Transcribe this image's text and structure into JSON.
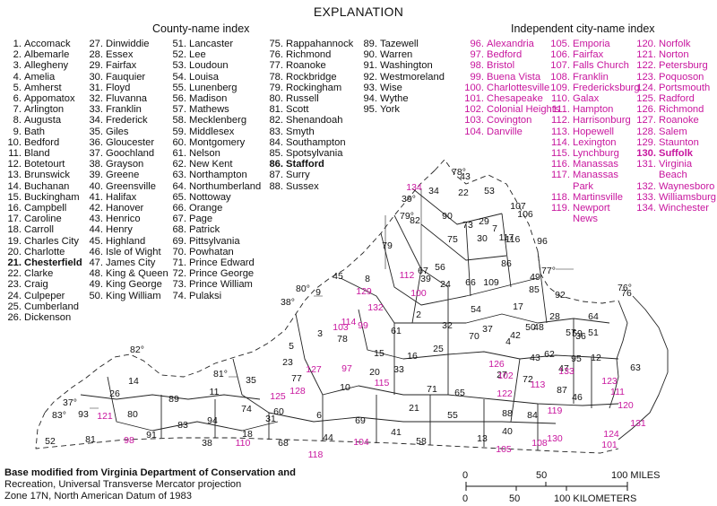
{
  "title": "EXPLANATION",
  "county_header": "County-name index",
  "city_header": "Independent city-name index",
  "counties": [
    {
      "num": "1.",
      "name": "Accomack"
    },
    {
      "num": "2.",
      "name": "Albemarle"
    },
    {
      "num": "3.",
      "name": "Allegheny"
    },
    {
      "num": "4.",
      "name": "Amelia"
    },
    {
      "num": "5.",
      "name": "Amherst"
    },
    {
      "num": "6.",
      "name": "Appomatox"
    },
    {
      "num": "7.",
      "name": "Arlington"
    },
    {
      "num": "8.",
      "name": "Augusta"
    },
    {
      "num": "9.",
      "name": "Bath"
    },
    {
      "num": "10.",
      "name": "Bedford"
    },
    {
      "num": "11.",
      "name": "Bland"
    },
    {
      "num": "12.",
      "name": "Botetourt"
    },
    {
      "num": "13.",
      "name": "Brunswick"
    },
    {
      "num": "14.",
      "name": "Buchanan"
    },
    {
      "num": "15.",
      "name": "Buckingham"
    },
    {
      "num": "16.",
      "name": "Campbell"
    },
    {
      "num": "17.",
      "name": "Caroline"
    },
    {
      "num": "18.",
      "name": "Carroll"
    },
    {
      "num": "19.",
      "name": "Charles City"
    },
    {
      "num": "20.",
      "name": "Charlotte"
    },
    {
      "num": "21.",
      "name": "Chesterfield",
      "bold": true
    },
    {
      "num": "22.",
      "name": "Clarke"
    },
    {
      "num": "23.",
      "name": "Craig"
    },
    {
      "num": "24.",
      "name": "Culpeper"
    },
    {
      "num": "25.",
      "name": "Cumberland"
    },
    {
      "num": "26.",
      "name": "Dickenson"
    },
    {
      "num": "27.",
      "name": "Dinwiddie"
    },
    {
      "num": "28.",
      "name": "Essex"
    },
    {
      "num": "29.",
      "name": "Fairfax"
    },
    {
      "num": "30.",
      "name": "Fauquier"
    },
    {
      "num": "31.",
      "name": "Floyd"
    },
    {
      "num": "32.",
      "name": "Fluvanna"
    },
    {
      "num": "33.",
      "name": "Franklin"
    },
    {
      "num": "34.",
      "name": "Frederick"
    },
    {
      "num": "35.",
      "name": "Giles"
    },
    {
      "num": "36.",
      "name": "Gloucester"
    },
    {
      "num": "37.",
      "name": "Goochland"
    },
    {
      "num": "38.",
      "name": "Grayson"
    },
    {
      "num": "39.",
      "name": "Greene"
    },
    {
      "num": "40.",
      "name": "Greensville"
    },
    {
      "num": "41.",
      "name": "Halifax"
    },
    {
      "num": "42.",
      "name": "Hanover"
    },
    {
      "num": "43.",
      "name": "Henrico"
    },
    {
      "num": "44.",
      "name": "Henry"
    },
    {
      "num": "45.",
      "name": "Highland"
    },
    {
      "num": "46.",
      "name": "Isle of Wight"
    },
    {
      "num": "47.",
      "name": "James City"
    },
    {
      "num": "48.",
      "name": "King & Queen"
    },
    {
      "num": "49.",
      "name": "King George"
    },
    {
      "num": "50.",
      "name": "King William"
    },
    {
      "num": "51.",
      "name": "Lancaster"
    },
    {
      "num": "52.",
      "name": "Lee"
    },
    {
      "num": "53.",
      "name": "Loudoun"
    },
    {
      "num": "54.",
      "name": "Louisa"
    },
    {
      "num": "55.",
      "name": "Lunenberg"
    },
    {
      "num": "56.",
      "name": "Madison"
    },
    {
      "num": "57.",
      "name": "Mathews"
    },
    {
      "num": "58.",
      "name": "Mecklenberg"
    },
    {
      "num": "59.",
      "name": "Middlesex"
    },
    {
      "num": "60.",
      "name": "Montgomery"
    },
    {
      "num": "61.",
      "name": "Nelson"
    },
    {
      "num": "62.",
      "name": "New Kent"
    },
    {
      "num": "63.",
      "name": "Northampton"
    },
    {
      "num": "64.",
      "name": "Northumberland"
    },
    {
      "num": "65.",
      "name": "Nottoway"
    },
    {
      "num": "66.",
      "name": "Orange"
    },
    {
      "num": "67.",
      "name": "Page"
    },
    {
      "num": "68.",
      "name": "Patrick"
    },
    {
      "num": "69.",
      "name": "Pittsylvania"
    },
    {
      "num": "70.",
      "name": "Powhatan"
    },
    {
      "num": "71.",
      "name": "Prince Edward"
    },
    {
      "num": "72.",
      "name": "Prince George"
    },
    {
      "num": "73.",
      "name": "Prince William"
    },
    {
      "num": "74.",
      "name": "Pulaksi"
    },
    {
      "num": "75.",
      "name": "Rappahannock"
    },
    {
      "num": "76.",
      "name": "Richmond"
    },
    {
      "num": "77.",
      "name": "Roanoke"
    },
    {
      "num": "78.",
      "name": "Rockbridge"
    },
    {
      "num": "79.",
      "name": "Rockingham"
    },
    {
      "num": "80.",
      "name": "Russell"
    },
    {
      "num": "81.",
      "name": "Scott"
    },
    {
      "num": "82.",
      "name": "Shenandoah"
    },
    {
      "num": "83.",
      "name": "Smyth"
    },
    {
      "num": "84.",
      "name": "Southampton"
    },
    {
      "num": "85.",
      "name": "Spotsylvania"
    },
    {
      "num": "86.",
      "name": "Stafford",
      "bold": true
    },
    {
      "num": "87.",
      "name": "Surry"
    },
    {
      "num": "88.",
      "name": "Sussex"
    },
    {
      "num": "89.",
      "name": "Tazewell"
    },
    {
      "num": "90.",
      "name": "Warren"
    },
    {
      "num": "91.",
      "name": "Washington"
    },
    {
      "num": "92.",
      "name": "Westmoreland"
    },
    {
      "num": "93.",
      "name": "Wise"
    },
    {
      "num": "94.",
      "name": "Wythe"
    },
    {
      "num": "95.",
      "name": "York"
    }
  ],
  "cities": [
    {
      "num": "96.",
      "name": "Alexandria"
    },
    {
      "num": "97.",
      "name": "Bedford"
    },
    {
      "num": "98.",
      "name": "Bristol"
    },
    {
      "num": "99.",
      "name": "Buena Vista"
    },
    {
      "num": "100.",
      "name": "Charlottesville"
    },
    {
      "num": "101.",
      "name": "Chesapeake"
    },
    {
      "num": "102.",
      "name": "Colonial Heights"
    },
    {
      "num": "103.",
      "name": "Covington"
    },
    {
      "num": "104.",
      "name": "Danville"
    },
    {
      "num": "105.",
      "name": "Emporia"
    },
    {
      "num": "106.",
      "name": "Fairfax"
    },
    {
      "num": "107.",
      "name": "Falls Church"
    },
    {
      "num": "108.",
      "name": "Franklin"
    },
    {
      "num": "109.",
      "name": "Fredericksburg"
    },
    {
      "num": "110.",
      "name": "Galax"
    },
    {
      "num": "111.",
      "name": "Hampton"
    },
    {
      "num": "112.",
      "name": "Harrisonburg"
    },
    {
      "num": "113.",
      "name": "Hopewell"
    },
    {
      "num": "114.",
      "name": "Lexington"
    },
    {
      "num": "115.",
      "name": "Lynchburg"
    },
    {
      "num": "116.",
      "name": "Manassas"
    },
    {
      "num": "117.",
      "name": "Manassas"
    },
    {
      "num": "",
      "name": "Park"
    },
    {
      "num": "118.",
      "name": "Martinsville"
    },
    {
      "num": "119.",
      "name": "Newport"
    },
    {
      "num": "",
      "name": "News"
    },
    {
      "num": "120.",
      "name": "Norfolk"
    },
    {
      "num": "121.",
      "name": "Norton"
    },
    {
      "num": "122.",
      "name": "Petersburg"
    },
    {
      "num": "123.",
      "name": "Poquoson"
    },
    {
      "num": "124.",
      "name": "Portsmouth"
    },
    {
      "num": "125.",
      "name": "Radford"
    },
    {
      "num": "126.",
      "name": "Richmond"
    },
    {
      "num": "127.",
      "name": "Roanoke"
    },
    {
      "num": "128.",
      "name": "Salem"
    },
    {
      "num": "129.",
      "name": "Staunton"
    },
    {
      "num": "130.",
      "name": "Suffolk",
      "bold": true
    },
    {
      "num": "131.",
      "name": "Virginia"
    },
    {
      "num": "",
      "name": "Beach"
    },
    {
      "num": "132.",
      "name": "Waynesboro"
    },
    {
      "num": "133.",
      "name": "Williamsburg"
    },
    {
      "num": "134.",
      "name": "Winchester"
    }
  ],
  "map": {
    "county_color": "#111111",
    "city_color": "#c8169e",
    "county_labels": [
      "34",
      "22",
      "53",
      "43",
      "90",
      "82",
      "73",
      "29",
      "107",
      "106",
      "96",
      "7",
      "79",
      "75",
      "30",
      "67",
      "117",
      "116",
      "56",
      "86",
      "24",
      "45",
      "8",
      "39",
      "66",
      "109",
      "85",
      "49",
      "92",
      "76",
      "9",
      "2",
      "54",
      "17",
      "28",
      "64",
      "51",
      "59",
      "48",
      "3",
      "78",
      "61",
      "32",
      "37",
      "42",
      "50",
      "57",
      "36",
      "12",
      "5",
      "15",
      "25",
      "70",
      "43",
      "4",
      "62",
      "47",
      "95",
      "63",
      "23",
      "27",
      "71",
      "65",
      "72",
      "87",
      "46",
      "14",
      "89",
      "11",
      "35",
      "77",
      "60",
      "10",
      "33",
      "16",
      "20",
      "6",
      "21",
      "26",
      "93",
      "80",
      "94",
      "74",
      "31",
      "69",
      "41",
      "55",
      "88",
      "84",
      "52",
      "81",
      "91",
      "83",
      "38",
      "18",
      "68",
      "44",
      "40",
      "13",
      "58"
    ],
    "city_labels": [
      "134",
      "112",
      "129",
      "132",
      "100",
      "114",
      "99",
      "103",
      "127",
      "97",
      "128",
      "125",
      "115",
      "126",
      "102",
      "122",
      "113",
      "133",
      "123",
      "111",
      "120",
      "131",
      "119",
      "124",
      "130",
      "101",
      "108",
      "104",
      "105",
      "118",
      "110",
      "121",
      "98"
    ],
    "degree_labels": [
      "78°",
      "39°",
      "79°",
      "77°",
      "80°",
      "76°",
      "38°",
      "82°",
      "81°",
      "37°",
      "83°"
    ]
  },
  "credit": {
    "line1": "Base modified from Virginia Department of Conservation and",
    "line2": "Recreation, Universal Transverse Mercator projection",
    "line3": "Zone 17N, North American Datum of 1983"
  },
  "scale": {
    "miles": [
      "0",
      "50",
      "100 MILES"
    ],
    "km": [
      "0",
      "50",
      "100 KILOMETERS"
    ]
  }
}
